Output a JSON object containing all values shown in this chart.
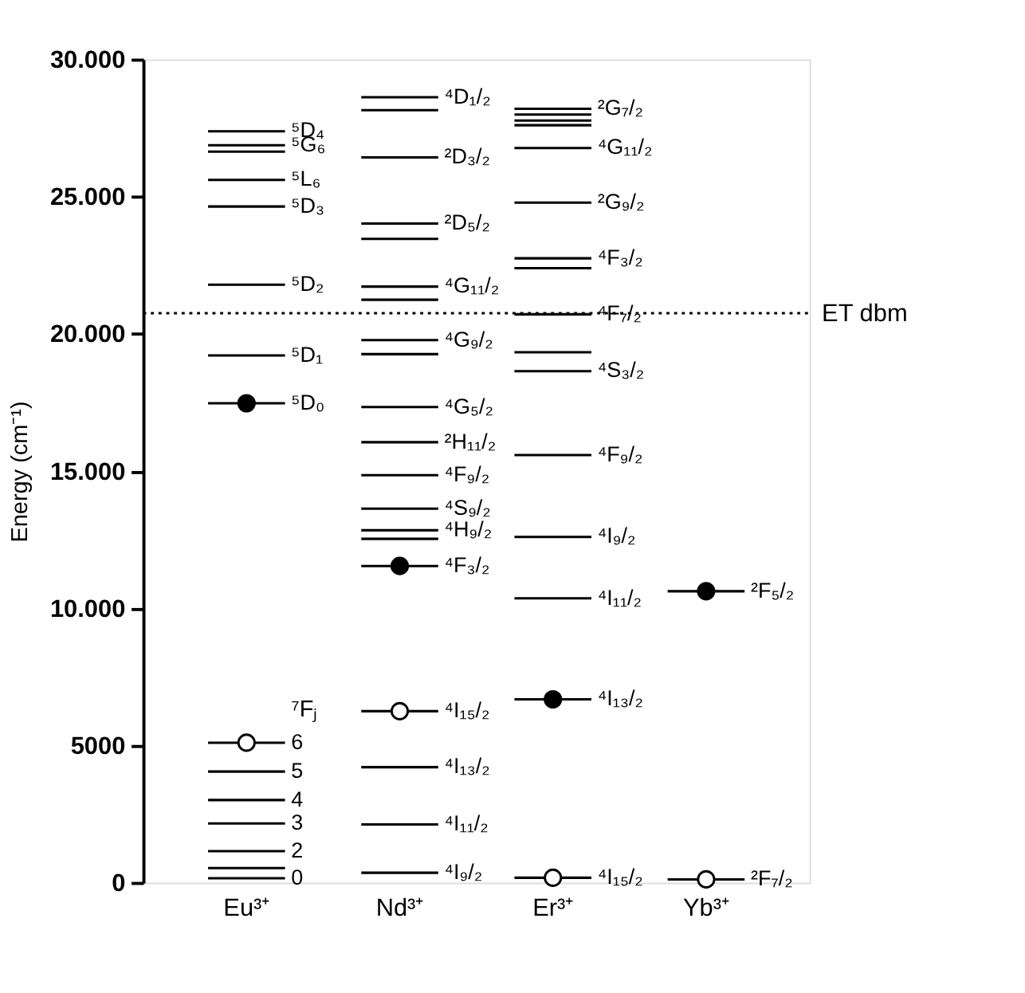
{
  "chart_data": {
    "type": "bar",
    "ylabel": "Energy (cm⁻¹)",
    "categories": [
      "Eu³⁺",
      "Nd³⁺",
      "Er³⁺",
      "Yb³⁺"
    ],
    "ylim": [
      0,
      30000
    ],
    "yticks": [
      {
        "value": 0,
        "label": "0"
      },
      {
        "value": 5000,
        "label": "5000"
      },
      {
        "value": 10000,
        "label": "10.000"
      },
      {
        "value": 15000,
        "label": "15.000"
      },
      {
        "value": 20000,
        "label": "20.000"
      },
      {
        "value": 25000,
        "label": "25.000"
      },
      {
        "value": 30000,
        "label": "30.000"
      }
    ],
    "series": [
      {
        "type": "bar",
        "color": "#000000",
        "x": [
          "Eu³⁺",
          "Eu³⁺",
          "Eu³⁺",
          "Eu³⁺",
          "Eu³⁺",
          "Eu³⁺",
          "Eu³⁺",
          "Eu³⁺",
          "Eu³⁺",
          "Eu³⁺",
          "Eu³⁺",
          "Eu³⁺",
          "Eu³⁺",
          "Eu³⁺",
          "Eu³⁺"
        ],
        "base": [
          27380,
          26870,
          26640,
          25610,
          24640,
          21790,
          19210,
          17470,
          5100,
          4050,
          3010,
          2160,
          1150,
          530,
          160
        ],
        "values": [
          0,
          0,
          0,
          0,
          0,
          0,
          0,
          0,
          0,
          0,
          0,
          0,
          0,
          0,
          0
        ]
      },
      {
        "type": "bar",
        "color": "#000000",
        "x": [
          "Nd³⁺",
          "Nd³⁺",
          "Nd³⁺",
          "Nd³⁺",
          "Nd³⁺",
          "Nd³⁺",
          "Nd³⁺",
          "Nd³⁺",
          "Nd³⁺",
          "Nd³⁺",
          "Nd³⁺",
          "Nd³⁺",
          "Nd³⁺",
          "Nd³⁺",
          "Nd³⁺",
          "Nd³⁺",
          "Nd³⁺",
          "Nd³⁺",
          "Nd³⁺",
          "Nd³⁺"
        ],
        "base": [
          28620,
          28150,
          26430,
          24020,
          23460,
          21720,
          21240,
          19770,
          19260,
          17330,
          16050,
          14850,
          13630,
          12840,
          12530,
          11540,
          6250,
          4210,
          2120,
          360
        ],
        "values": [
          0,
          0,
          0,
          0,
          0,
          0,
          0,
          0,
          0,
          0,
          0,
          0,
          0,
          0,
          0,
          0,
          0,
          0,
          0,
          0
        ]
      },
      {
        "type": "bar",
        "color": "#000000",
        "x": [
          "Er³⁺",
          "Er³⁺",
          "Er³⁺",
          "Er³⁺",
          "Er³⁺",
          "Er³⁺",
          "Er³⁺",
          "Er³⁺",
          "Er³⁺",
          "Er³⁺",
          "Er³⁺",
          "Er³⁺",
          "Er³⁺",
          "Er³⁺",
          "Er³⁺",
          "Er³⁺"
        ],
        "base": [
          28200,
          27990,
          27770,
          27600,
          26770,
          24780,
          22750,
          22390,
          20710,
          19330,
          18640,
          15580,
          12600,
          10360,
          6680,
          180
        ],
        "values": [
          0,
          0,
          0,
          0,
          0,
          0,
          0,
          0,
          0,
          0,
          0,
          0,
          0,
          0,
          0,
          0
        ]
      },
      {
        "type": "bar",
        "color": "#000000",
        "x": [
          "Yb³⁺",
          "Yb³⁺"
        ],
        "base": [
          10620,
          120
        ],
        "values": [
          0,
          0
        ]
      },
      {
        "type": "scatter",
        "marker": "circle",
        "color": "#000000",
        "x": [
          "Eu³⁺",
          "Nd³⁺",
          "Er³⁺",
          "Yb³⁺"
        ],
        "values": [
          17470,
          11540,
          6680,
          10620
        ]
      },
      {
        "type": "scatter",
        "marker": "circle",
        "color": "#ffffff",
        "x": [
          "Eu³⁺",
          "Nd³⁺",
          "Er³⁺",
          "Yb³⁺"
        ],
        "values": [
          5100,
          6250,
          180,
          120
        ]
      }
    ],
    "ref_lines": [
      {
        "axis": "y",
        "value": 20750,
        "label": "ET dbm",
        "line_style": "dotted"
      }
    ],
    "annotations": [
      {
        "text": "⁵D₄",
        "x": "Eu³⁺",
        "y": 27380
      },
      {
        "text": "⁵G₆",
        "x": "Eu³⁺",
        "y": 26870
      },
      {
        "text": "⁵L₆",
        "x": "Eu³⁺",
        "y": 25610
      },
      {
        "text": "⁵D₃",
        "x": "Eu³⁺",
        "y": 24640
      },
      {
        "text": "⁵D₂",
        "x": "Eu³⁺",
        "y": 21790
      },
      {
        "text": "⁵D₁",
        "x": "Eu³⁺",
        "y": 19210
      },
      {
        "text": "⁵D₀",
        "x": "Eu³⁺",
        "y": 17470
      },
      "⁷Fⱼ",
      {
        "text": "6",
        "x": "Eu³⁺",
        "y": 5100
      },
      {
        "text": "5",
        "x": "Eu³⁺",
        "y": 4050
      },
      {
        "text": "4",
        "x": "Eu³⁺",
        "y": 3010
      },
      {
        "text": "3",
        "x": "Eu³⁺",
        "y": 2160
      },
      {
        "text": "2",
        "x": "Eu³⁺",
        "y": 1150
      },
      {
        "text": "0",
        "x": "Eu³⁺",
        "y": 160
      },
      {
        "text": "⁴D₁/₂",
        "x": "Nd³⁺",
        "y": 28620
      },
      {
        "text": "²D₃/₂",
        "x": "Nd³⁺",
        "y": 26430
      },
      {
        "text": "²D₅/₂",
        "x": "Nd³⁺",
        "y": 24020
      },
      {
        "text": "⁴G₁₁/₂",
        "x": "Nd³⁺",
        "y": 21720
      },
      {
        "text": "⁴G₉/₂",
        "x": "Nd³⁺",
        "y": 19770
      },
      {
        "text": "⁴G₅/₂",
        "x": "Nd³⁺",
        "y": 17330
      },
      {
        "text": "²H₁₁/₂",
        "x": "Nd³⁺",
        "y": 16050
      },
      {
        "text": "⁴F₉/₂",
        "x": "Nd³⁺",
        "y": 14850
      },
      {
        "text": "⁴S₉/₂",
        "x": "Nd³⁺",
        "y": 13630
      },
      {
        "text": "⁴H₉/₂",
        "x": "Nd³⁺",
        "y": 12840
      },
      {
        "text": "⁴F₃/₂",
        "x": "Nd³⁺",
        "y": 11540
      },
      {
        "text": "⁴I₁₅/₂",
        "x": "Nd³⁺",
        "y": 6250
      },
      {
        "text": "⁴I₁₃/₂",
        "x": "Nd³⁺",
        "y": 4210
      },
      {
        "text": "⁴I₁₁/₂",
        "x": "Nd³⁺",
        "y": 2120
      },
      {
        "text": "⁴I₉/₂",
        "x": "Nd³⁺",
        "y": 360
      },
      {
        "text": "²G₇/₂",
        "x": "Er³⁺",
        "y": 28200
      },
      {
        "text": "⁴G₁₁/₂",
        "x": "Er³⁺",
        "y": 26770
      },
      {
        "text": "²G₉/₂",
        "x": "Er³⁺",
        "y": 24780
      },
      {
        "text": "⁴F₃/₂",
        "x": "Er³⁺",
        "y": 22750
      },
      {
        "text": "⁴F₇/₂",
        "x": "Er³⁺",
        "y": 20710
      },
      {
        "text": "⁴S₃/₂",
        "x": "Er³⁺",
        "y": 18640
      },
      {
        "text": "⁴F₉/₂",
        "x": "Er³⁺",
        "y": 15580
      },
      {
        "text": "⁴I₉/₂",
        "x": "Er³⁺",
        "y": 12600
      },
      {
        "text": "⁴I₁₁/₂",
        "x": "Er³⁺",
        "y": 10360
      },
      {
        "text": "⁴I₁₃/₂",
        "x": "Er³⁺",
        "y": 6680
      },
      {
        "text": "⁴I₁₅/₂",
        "x": "Er³⁺",
        "y": 180
      },
      {
        "text": "²F₅/₂",
        "x": "Yb³⁺",
        "y": 10620
      },
      {
        "text": "²F₇/₂",
        "x": "Yb³⁺",
        "y": 120
      }
    ]
  }
}
